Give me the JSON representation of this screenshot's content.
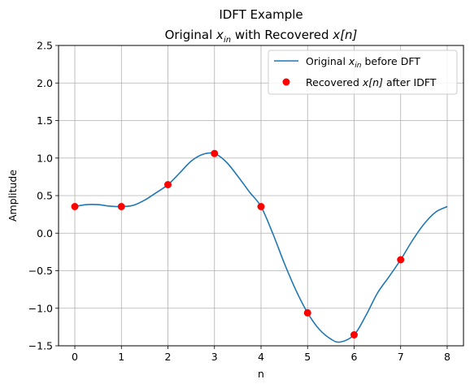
{
  "chart_data": {
    "type": "line",
    "title": "IDFT Example",
    "subtitle_parts": {
      "prefix": "Original ",
      "var1_base": "x",
      "var1_sub": "in",
      "middle": " with Recovered ",
      "var2_base": "x",
      "var2_bracket": "[n]"
    },
    "xlabel": "n",
    "ylabel": "Amplitude",
    "xlim": [
      -0.35,
      8.35
    ],
    "ylim": [
      -1.5,
      2.5
    ],
    "xticks": [
      0,
      1,
      2,
      3,
      4,
      5,
      6,
      7,
      8
    ],
    "xtick_labels": [
      "0",
      "1",
      "2",
      "3",
      "4",
      "5",
      "6",
      "7",
      "8"
    ],
    "yticks": [
      -1.5,
      -1.0,
      -0.5,
      0.0,
      0.5,
      1.0,
      1.5,
      2.0,
      2.5
    ],
    "ytick_labels": [
      "−1.5",
      "−1.0",
      "−0.5",
      "0.0",
      "0.5",
      "1.0",
      "1.5",
      "2.0",
      "2.5"
    ],
    "grid": true,
    "legend_position": "top-right",
    "series": [
      {
        "kind": "line",
        "color": "#1f77b4",
        "legend": {
          "prefix": "Original ",
          "base": "x",
          "sub": "in",
          "suffix": " before DFT"
        },
        "x": [
          0,
          0.25,
          0.5,
          0.75,
          1,
          1.25,
          1.5,
          1.75,
          2,
          2.25,
          2.5,
          2.75,
          3,
          3.25,
          3.5,
          3.75,
          4,
          4.25,
          4.5,
          4.75,
          5,
          5.25,
          5.5,
          5.7,
          6,
          6.25,
          6.5,
          6.75,
          7,
          7.25,
          7.5,
          7.75,
          8
        ],
        "y": [
          0.354,
          0.38,
          0.38,
          0.36,
          0.354,
          0.37,
          0.44,
          0.54,
          0.646,
          0.8,
          0.96,
          1.05,
          1.061,
          0.95,
          0.76,
          0.55,
          0.354,
          0.0,
          -0.4,
          -0.76,
          -1.061,
          -1.28,
          -1.41,
          -1.45,
          -1.354,
          -1.1,
          -0.8,
          -0.58,
          -0.354,
          -0.1,
          0.12,
          0.28,
          0.354
        ]
      },
      {
        "kind": "scatter",
        "color": "#ff0000",
        "legend": {
          "prefix": "Recovered ",
          "base": "x",
          "bracket": "[n]",
          "suffix": " after IDFT"
        },
        "x": [
          0,
          1,
          2,
          3,
          4,
          5,
          6,
          7
        ],
        "y": [
          0.354,
          0.354,
          0.646,
          1.061,
          0.354,
          -1.061,
          -1.354,
          -0.354
        ]
      }
    ]
  }
}
